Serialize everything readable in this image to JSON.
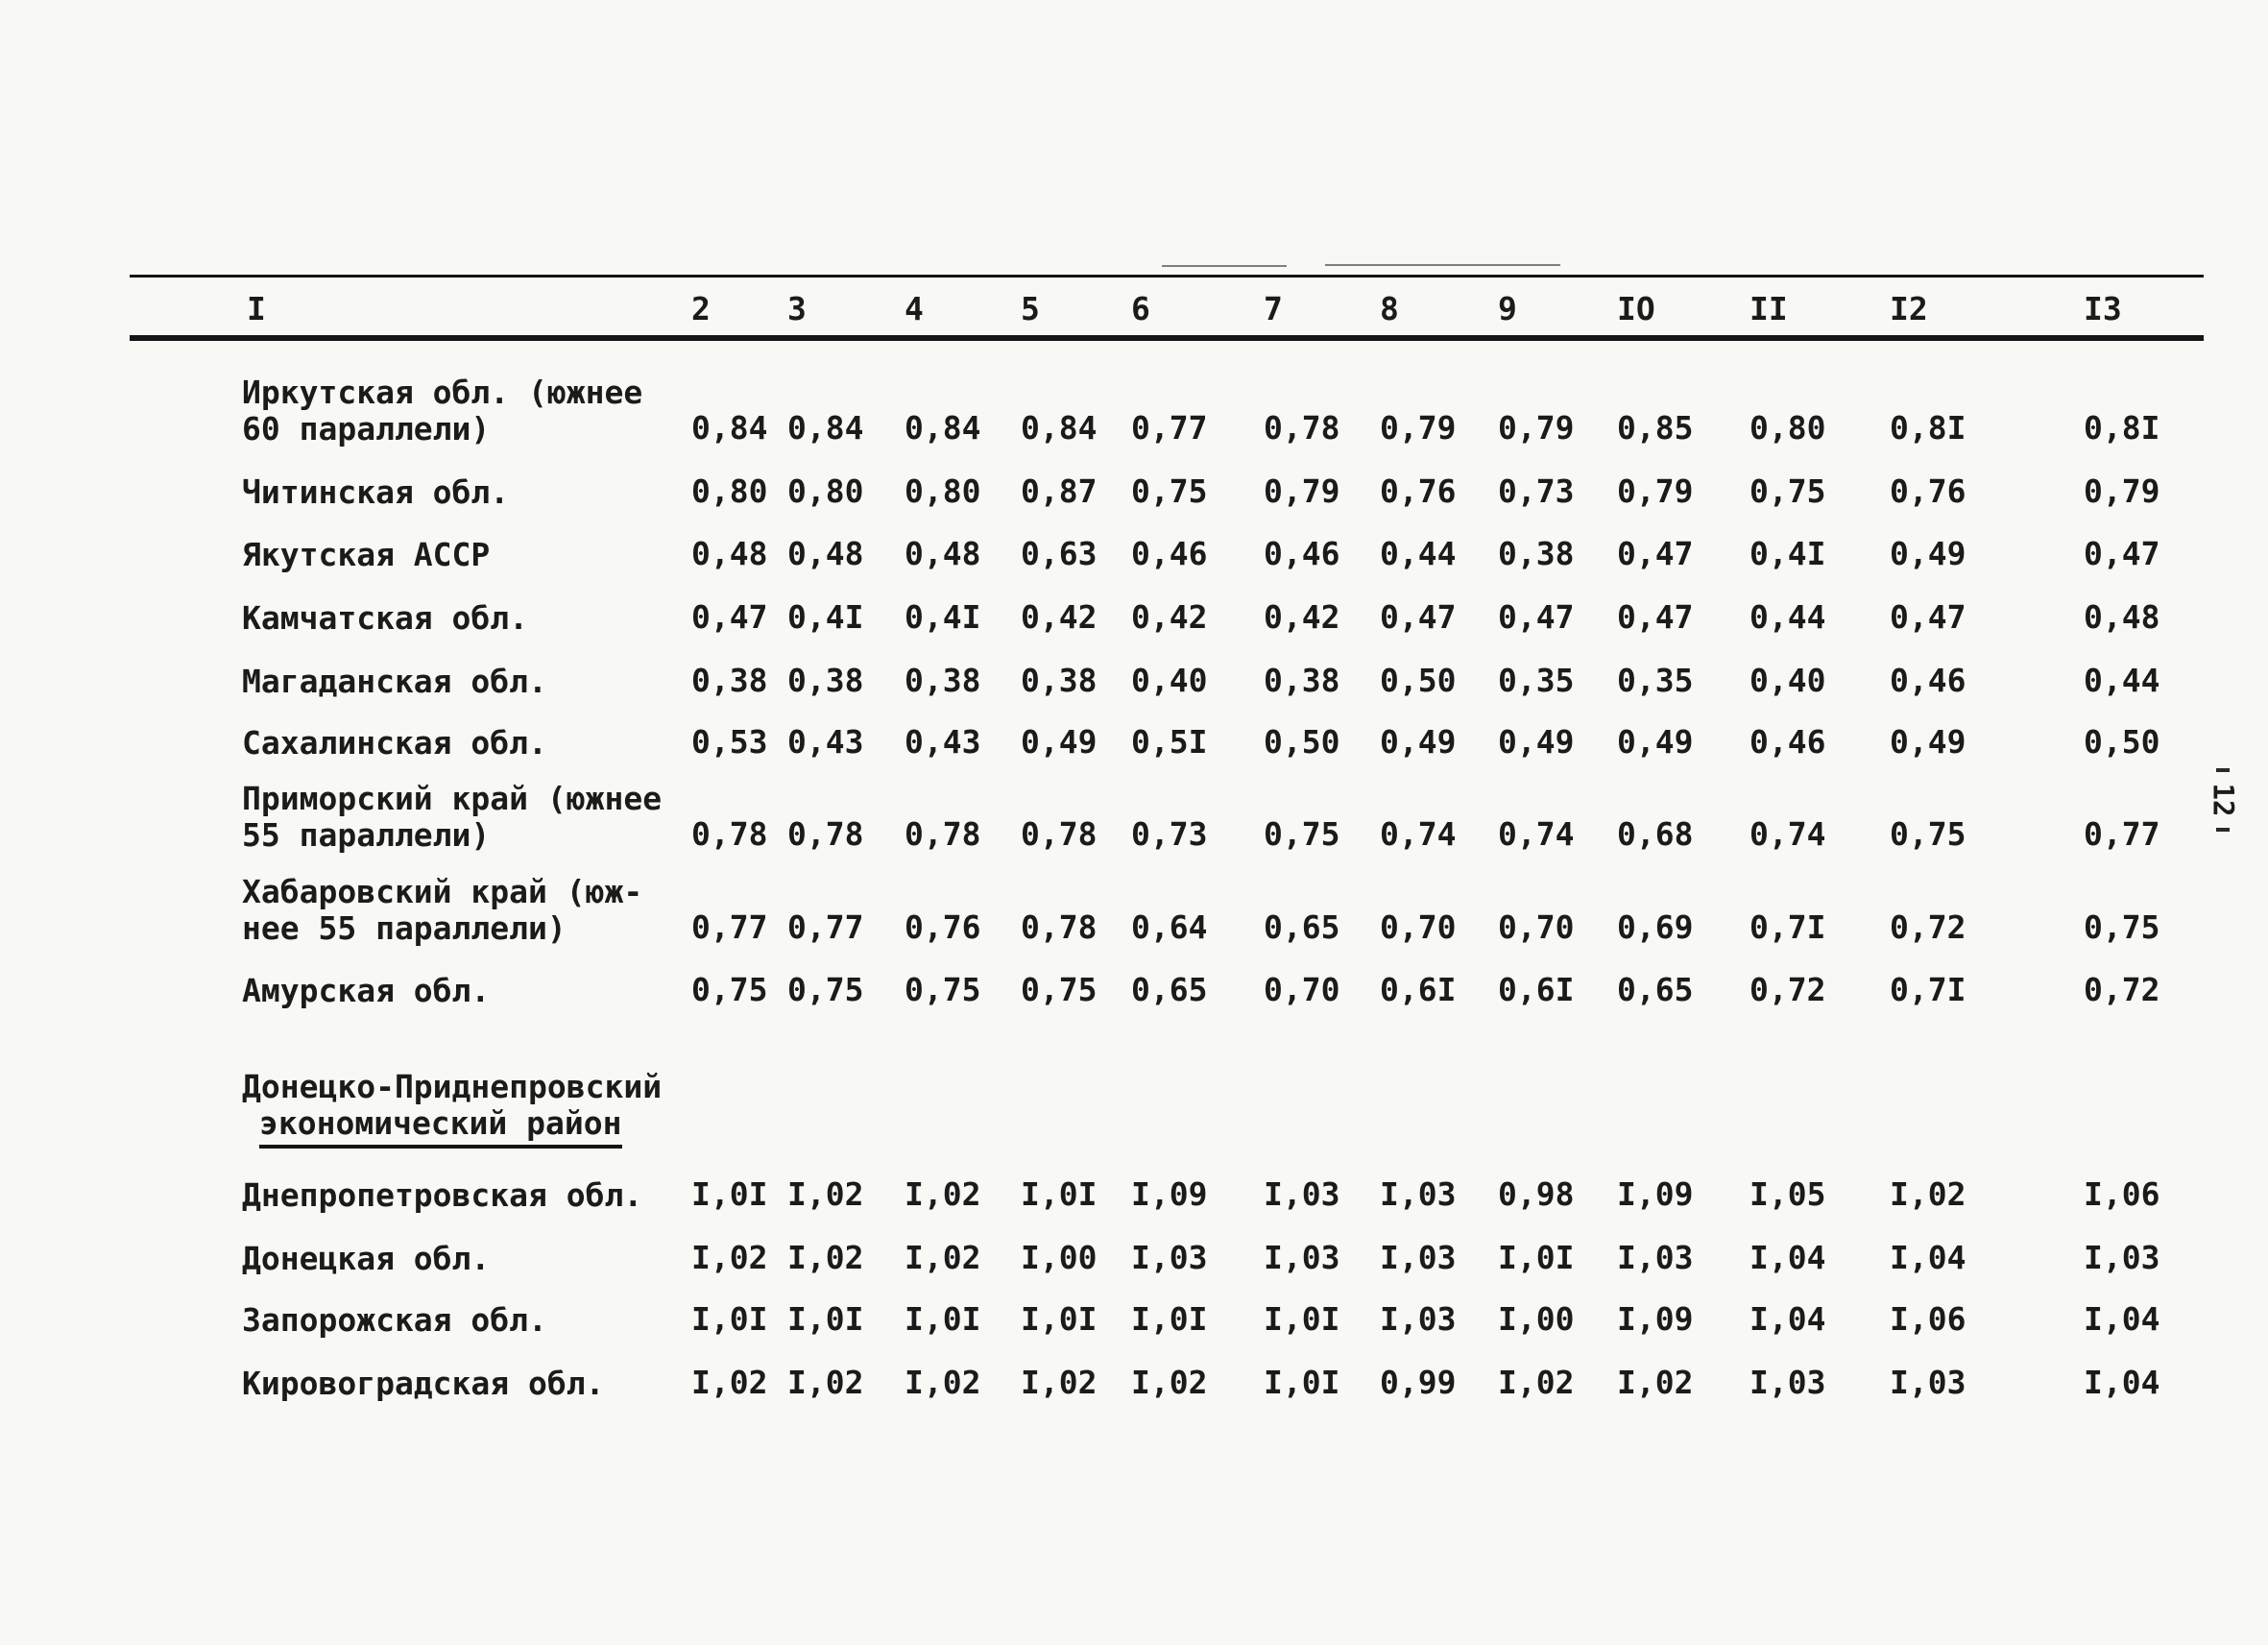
{
  "colors": {
    "ink": "#1b1b1b",
    "paper": "#f8f8f5"
  },
  "page_marker": "12",
  "table": {
    "columns": [
      "I",
      "2",
      "3",
      "4",
      "5",
      "6",
      "7",
      "8",
      "9",
      "IO",
      "II",
      "I2",
      "I3"
    ],
    "rows": [
      {
        "type": "data",
        "label_lines": [
          "Иркутская обл. (южнее",
          "60 параллели)"
        ],
        "values": [
          "0,84",
          "0,84",
          "0,84",
          "0,84",
          "0,77",
          "0,78",
          "0,79",
          "0,79",
          "0,85",
          "0,80",
          "0,8I",
          "0,8I"
        ]
      },
      {
        "type": "data",
        "label_lines": [
          "Читинская обл."
        ],
        "values": [
          "0,80",
          "0,80",
          "0,80",
          "0,87",
          "0,75",
          "0,79",
          "0,76",
          "0,73",
          "0,79",
          "0,75",
          "0,76",
          "0,79"
        ]
      },
      {
        "type": "data",
        "label_lines": [
          "Якутская АССР"
        ],
        "values": [
          "0,48",
          "0,48",
          "0,48",
          "0,63",
          "0,46",
          "0,46",
          "0,44",
          "0,38",
          "0,47",
          "0,4I",
          "0,49",
          "0,47"
        ]
      },
      {
        "type": "data",
        "label_lines": [
          "Камчатская обл."
        ],
        "values": [
          "0,47",
          "0,4I",
          "0,4I",
          "0,42",
          "0,42",
          "0,42",
          "0,47",
          "0,47",
          "0,47",
          "0,44",
          "0,47",
          "0,48"
        ]
      },
      {
        "type": "data",
        "label_lines": [
          "Магаданская обл."
        ],
        "values": [
          "0,38",
          "0,38",
          "0,38",
          "0,38",
          "0,40",
          "0,38",
          "0,50",
          "0,35",
          "0,35",
          "0,40",
          "0,46",
          "0,44"
        ]
      },
      {
        "type": "data",
        "label_lines": [
          "Сахалинская обл."
        ],
        "values": [
          "0,53",
          "0,43",
          "0,43",
          "0,49",
          "0,5I",
          "0,50",
          "0,49",
          "0,49",
          "0,49",
          "0,46",
          "0,49",
          "0,50"
        ]
      },
      {
        "type": "data",
        "label_lines": [
          "Приморский край (южнее",
          "55 параллели)"
        ],
        "values": [
          "0,78",
          "0,78",
          "0,78",
          "0,78",
          "0,73",
          "0,75",
          "0,74",
          "0,74",
          "0,68",
          "0,74",
          "0,75",
          "0,77"
        ]
      },
      {
        "type": "data",
        "label_lines": [
          "Хабаровский край (юж-",
          "нее 55 параллели)"
        ],
        "values": [
          "0,77",
          "0,77",
          "0,76",
          "0,78",
          "0,64",
          "0,65",
          "0,70",
          "0,70",
          "0,69",
          "0,7I",
          "0,72",
          "0,75"
        ]
      },
      {
        "type": "data",
        "label_lines": [
          "Амурская обл."
        ],
        "values": [
          "0,75",
          "0,75",
          "0,75",
          "0,75",
          "0,65",
          "0,70",
          "0,6I",
          "0,6I",
          "0,65",
          "0,72",
          "0,7I",
          "0,72"
        ]
      },
      {
        "type": "section",
        "label_lines": [
          "Донецко-Приднепровский",
          "экономический район"
        ]
      },
      {
        "type": "data",
        "label_lines": [
          "Днепропетровская обл."
        ],
        "values": [
          "I,0I",
          "I,02",
          "I,02",
          "I,0I",
          "I,09",
          "I,03",
          "I,03",
          "0,98",
          "I,09",
          "I,05",
          "I,02",
          "I,06"
        ]
      },
      {
        "type": "data",
        "label_lines": [
          "Донецкая обл."
        ],
        "values": [
          "I,02",
          "I,02",
          "I,02",
          "I,00",
          "I,03",
          "I,03",
          "I,03",
          "I,0I",
          "I,03",
          "I,04",
          "I,04",
          "I,03"
        ]
      },
      {
        "type": "data",
        "label_lines": [
          "Запорожская обл."
        ],
        "values": [
          "I,0I",
          "I,0I",
          "I,0I",
          "I,0I",
          "I,0I",
          "I,0I",
          "I,03",
          "I,00",
          "I,09",
          "I,04",
          "I,06",
          "I,04"
        ]
      },
      {
        "type": "data",
        "label_lines": [
          "Кировоградская обл."
        ],
        "values": [
          "I,02",
          "I,02",
          "I,02",
          "I,02",
          "I,02",
          "I,0I",
          "0,99",
          "I,02",
          "I,02",
          "I,03",
          "I,03",
          "I,04"
        ]
      }
    ]
  }
}
